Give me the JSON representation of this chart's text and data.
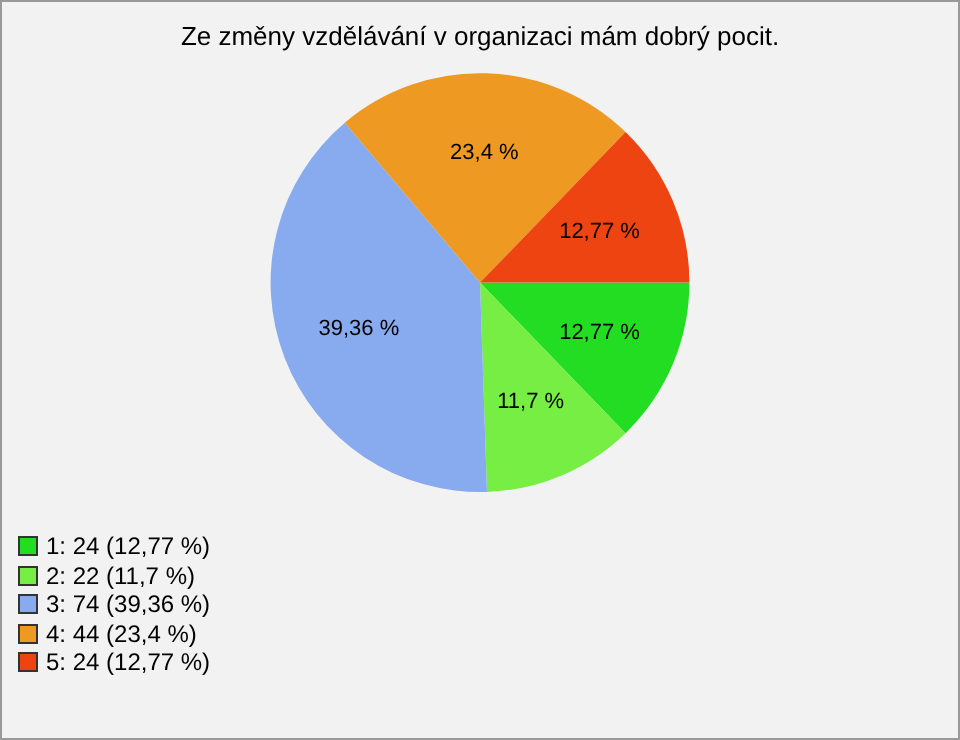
{
  "chart_data": {
    "type": "pie",
    "title": "Ze změny vzdělávání v organizaci mám dobrý pocit.",
    "categories": [
      "1: 24 (12,77 %)",
      "2: 22 (11,7 %)",
      "3: 74 (39,36 %)",
      "4: 44 (23,4 %)",
      "5: 24 (12,77 %)"
    ],
    "values": [
      12.77,
      11.7,
      39.36,
      23.4,
      12.77
    ],
    "value_labels": [
      "12,77 %",
      "11,7 %",
      "39,36 %",
      "23,4 %",
      "12,77 %"
    ],
    "colors": [
      "#22dd22",
      "#77ee44",
      "#88aaee",
      "#ee9922",
      "#ee4411"
    ],
    "legend": "bottom left"
  }
}
